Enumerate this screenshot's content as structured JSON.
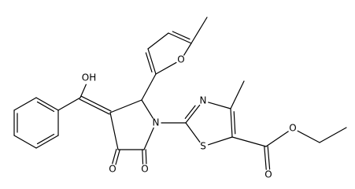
{
  "atoms": [
    {
      "label": "OH"
    },
    {
      "label": "O"
    },
    {
      "label": "N"
    },
    {
      "label": "N"
    },
    {
      "label": "S"
    },
    {
      "label": "O"
    },
    {
      "label": "O"
    },
    {
      "label": "O"
    },
    {
      "label": "O"
    }
  ]
}
